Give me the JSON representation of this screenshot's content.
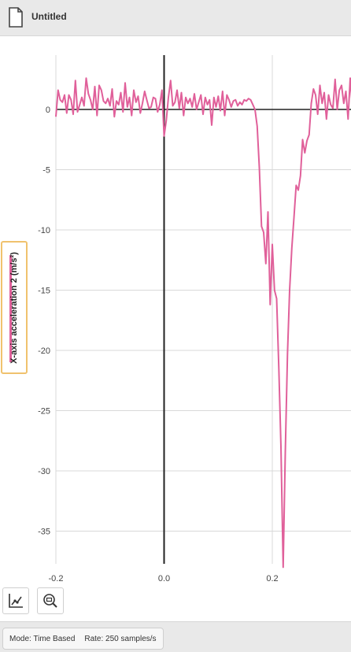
{
  "window": {
    "title": "Untitled"
  },
  "icons": {
    "document": "document-icon",
    "graph_tools": "graph-line-icon",
    "zoom": "zoom-icon"
  },
  "colors": {
    "series": "#e0609a",
    "accent_border": "#f0c26e"
  },
  "status": {
    "mode": "Mode: Time Based",
    "rate": "Rate: 250 samples/s"
  },
  "chart_data": {
    "type": "line",
    "title": "",
    "xlabel": "",
    "ylabel": "X-axis acceleration 2 (m/s²)",
    "xlim": [
      -0.2,
      0.35
    ],
    "ylim": [
      -38,
      5
    ],
    "xticks": [
      -0.2,
      0.0,
      0.2
    ],
    "xtick_labels": [
      "-0.2",
      "0.0",
      "0.2"
    ],
    "yticks": [
      0,
      -5,
      -10,
      -15,
      -20,
      -25,
      -30,
      -35
    ],
    "ytick_labels": [
      "0",
      "-5",
      "-10",
      "-15",
      "-20",
      "-25",
      "-30",
      "-35"
    ],
    "grid": true,
    "series": [
      {
        "color": "#e0609a",
        "x": [
          -0.2,
          -0.196,
          -0.192,
          -0.188,
          -0.184,
          -0.18,
          -0.176,
          -0.172,
          -0.168,
          -0.164,
          -0.16,
          -0.156,
          -0.152,
          -0.148,
          -0.144,
          -0.14,
          -0.136,
          -0.132,
          -0.128,
          -0.124,
          -0.12,
          -0.116,
          -0.112,
          -0.108,
          -0.104,
          -0.1,
          -0.096,
          -0.092,
          -0.088,
          -0.084,
          -0.08,
          -0.076,
          -0.072,
          -0.068,
          -0.064,
          -0.06,
          -0.056,
          -0.052,
          -0.048,
          -0.044,
          -0.04,
          -0.036,
          -0.032,
          -0.028,
          -0.024,
          -0.02,
          -0.016,
          -0.012,
          -0.008,
          -0.004,
          0.0,
          0.004,
          0.008,
          0.012,
          0.016,
          0.02,
          0.024,
          0.028,
          0.032,
          0.036,
          0.04,
          0.044,
          0.048,
          0.052,
          0.056,
          0.06,
          0.064,
          0.068,
          0.072,
          0.076,
          0.08,
          0.084,
          0.088,
          0.092,
          0.096,
          0.1,
          0.104,
          0.108,
          0.112,
          0.116,
          0.12,
          0.124,
          0.128,
          0.132,
          0.136,
          0.14,
          0.144,
          0.148,
          0.152,
          0.156,
          0.16,
          0.164,
          0.168,
          0.172,
          0.176,
          0.18,
          0.184,
          0.188,
          0.192,
          0.196,
          0.2,
          0.204,
          0.208,
          0.212,
          0.216,
          0.22,
          0.224,
          0.228,
          0.232,
          0.236,
          0.24,
          0.244,
          0.248,
          0.252,
          0.256,
          0.26,
          0.264,
          0.268,
          0.272,
          0.276,
          0.28,
          0.284,
          0.288,
          0.292,
          0.296,
          0.3,
          0.304,
          0.308,
          0.312,
          0.316,
          0.32,
          0.324,
          0.328,
          0.332,
          0.336,
          0.34,
          0.344,
          0.348
        ],
        "values": [
          -0.6,
          1.6,
          0.8,
          0.6,
          1.2,
          -0.3,
          1.2,
          0.8,
          -0.4,
          2.4,
          -0.2,
          0.4,
          1.0,
          0.3,
          2.6,
          1.3,
          0.8,
          0.0,
          1.9,
          -0.5,
          2.0,
          1.6,
          0.7,
          0.5,
          0.9,
          0.3,
          1.7,
          -0.6,
          0.7,
          0.4,
          1.4,
          -0.2,
          2.2,
          0.2,
          1.0,
          -0.5,
          1.6,
          0.6,
          1.1,
          -0.3,
          0.5,
          1.5,
          0.8,
          0.1,
          0.2,
          1.0,
          0.9,
          -0.2,
          0.4,
          1.6,
          -2.2,
          -0.9,
          1.0,
          2.4,
          0.3,
          0.6,
          1.6,
          0.1,
          1.4,
          -0.5,
          1.0,
          0.5,
          0.9,
          0.2,
          1.3,
          0.0,
          0.6,
          1.2,
          -0.4,
          1.0,
          0.4,
          0.8,
          -1.3,
          1.0,
          0.2,
          1.1,
          -0.1,
          1.5,
          -0.5,
          1.2,
          0.8,
          0.2,
          0.7,
          0.8,
          0.3,
          0.6,
          0.4,
          0.8,
          0.7,
          0.9,
          0.8,
          0.4,
          0.0,
          -1.4,
          -4.8,
          -9.7,
          -10.2,
          -12.8,
          -8.5,
          -16.2,
          -11.2,
          -15.0,
          -15.7,
          -21.5,
          -28.0,
          -38.0,
          -28.5,
          -20.3,
          -15.0,
          -11.5,
          -9.0,
          -6.3,
          -6.7,
          -5.5,
          -2.5,
          -3.6,
          -2.6,
          -2.1,
          0.5,
          1.7,
          1.2,
          -0.4,
          2.0,
          0.5,
          1.4,
          -0.8,
          1.2,
          0.4,
          0.1,
          2.5,
          0.0,
          1.6,
          2.0,
          0.5,
          1.5,
          -0.8,
          2.6,
          0.2
        ]
      }
    ]
  }
}
